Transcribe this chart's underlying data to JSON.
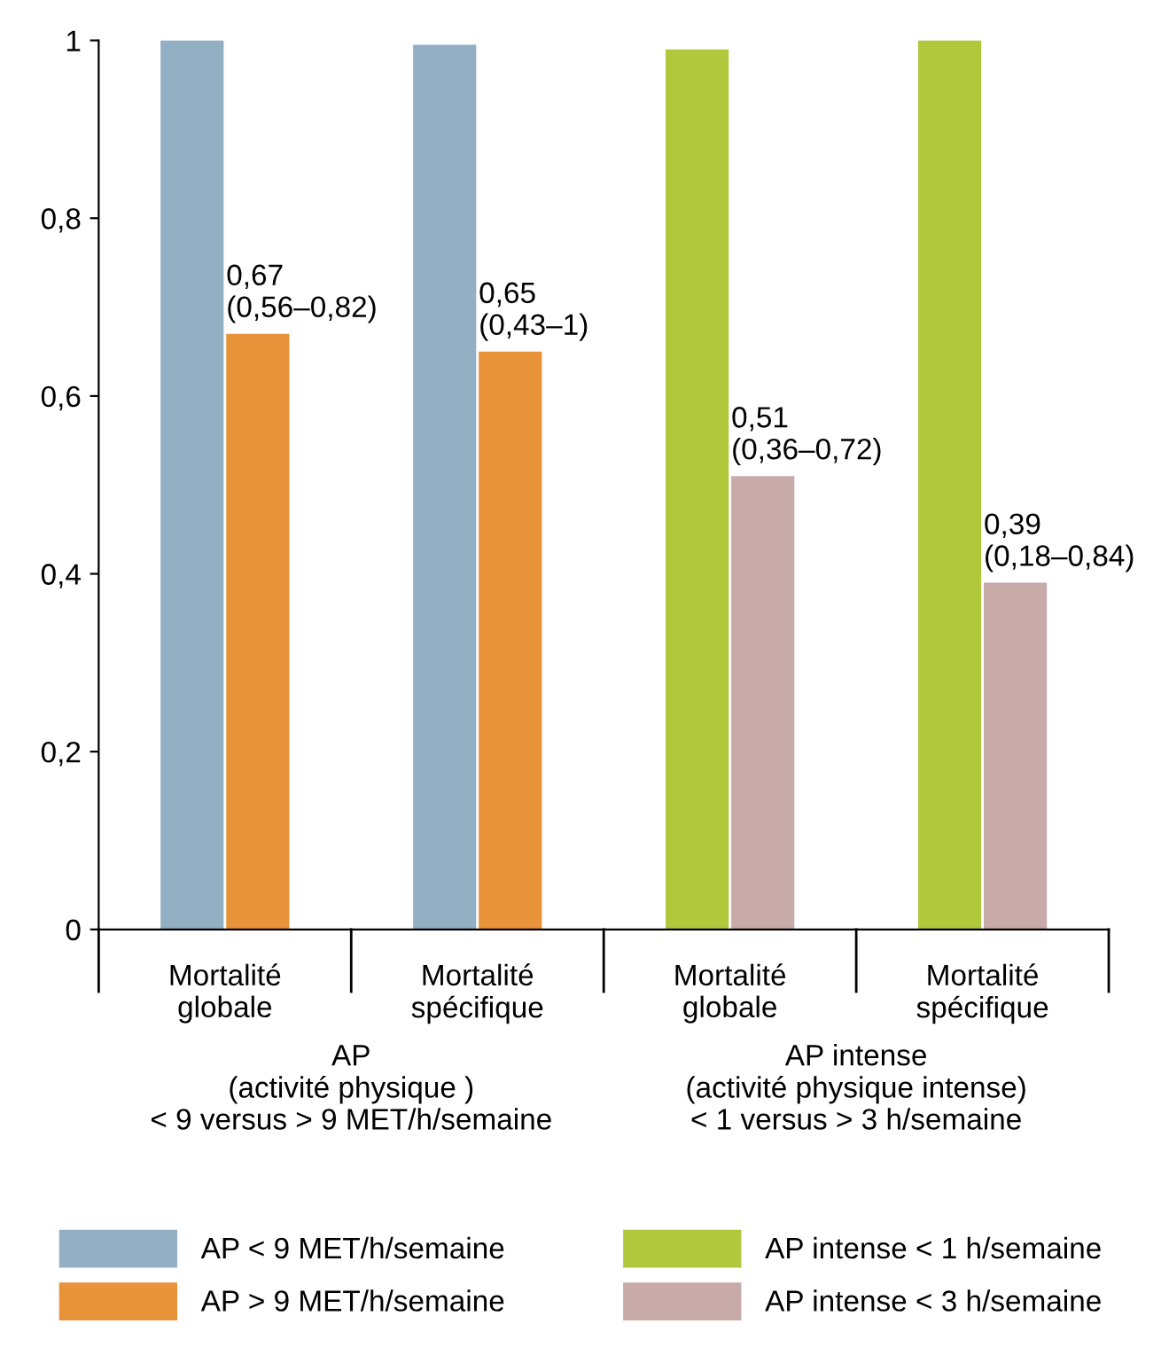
{
  "chart_data": {
    "type": "bar",
    "categories": [
      "Mortalité\nglobale",
      "Mortalité\nspécifique",
      "Mortalité\nglobale",
      "Mortalité\nspécifique"
    ],
    "series": [
      {
        "name": "AP < 9 MET/h/semaine",
        "color": "#92afc3",
        "values": [
          1.0,
          0.995,
          null,
          null
        ]
      },
      {
        "name": "AP > 9 MET/h/semaine",
        "color": "#e8923a",
        "values": [
          0.67,
          0.65,
          null,
          null
        ],
        "value_labels": [
          "0,67\n(0,56–0,82)",
          "0,65\n(0,43–1)",
          null,
          null
        ]
      },
      {
        "name": "AP intense < 1 h/semaine",
        "color": "#b2c83c",
        "values": [
          null,
          null,
          0.99,
          1.0
        ]
      },
      {
        "name": "AP intense < 3 h/semaine",
        "color": "#c8aaa9",
        "values": [
          null,
          null,
          0.51,
          0.39
        ],
        "value_labels": [
          null,
          null,
          "0,51\n(0,36–0,72)",
          "0,39\n(0,18–0,84)"
        ]
      }
    ],
    "ylim": [
      0,
      1
    ],
    "yticks": [
      0,
      {
        "value": 0.2,
        "label": "0,2"
      },
      {
        "value": 0.4,
        "label": "0,4"
      },
      {
        "value": 0.6,
        "label": "0,6"
      },
      {
        "value": 0.8,
        "label": "0,8"
      },
      1
    ],
    "annotations": [
      "AP\n(activité physique )\n< 9 versus > 9 MET/h/semaine",
      "AP intense\n(activité physique intense)\n< 1 versus > 3 h/semaine"
    ],
    "grid": false,
    "legend": "bottom"
  }
}
